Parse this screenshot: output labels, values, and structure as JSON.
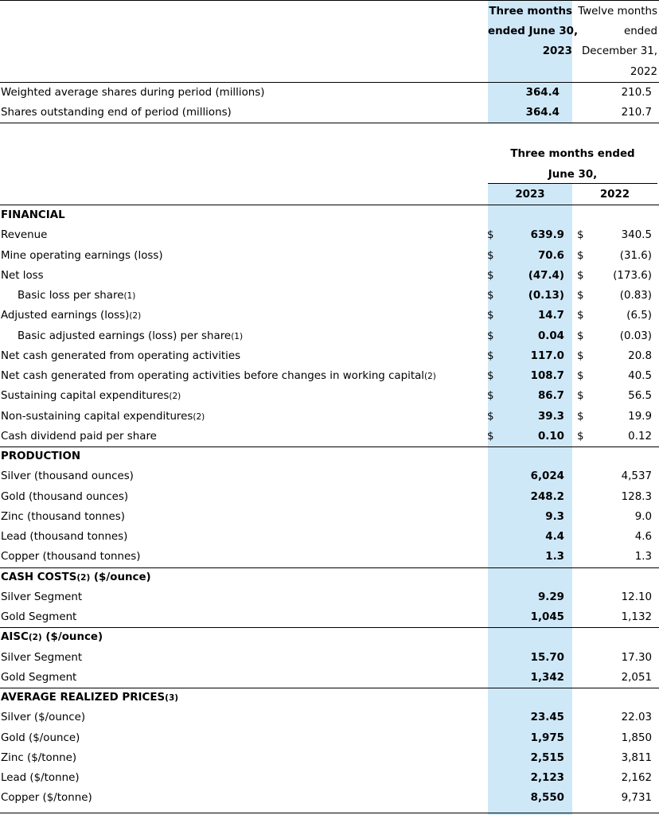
{
  "shares_table": {
    "header": {
      "col1": [
        "Three months",
        "ended June 30,",
        "2023"
      ],
      "col2": [
        "Twelve months",
        "ended",
        "December 31,",
        "2022"
      ]
    },
    "rows": [
      {
        "label": "Weighted average shares during period (millions)",
        "v2023": "364.4",
        "v2022": "210.5"
      },
      {
        "label": "Shares outstanding end of period (millions)",
        "v2023": "364.4",
        "v2022": "210.7"
      }
    ]
  },
  "main_table": {
    "header": {
      "group": [
        "Three months ended",
        "June 30,"
      ],
      "y2023": "2023",
      "y2022": "2022"
    },
    "currency_symbol": "$",
    "sections": [
      {
        "title": "FINANCIAL",
        "title_suffix": "",
        "rows": [
          {
            "label": "Revenue",
            "sup": "",
            "indent": false,
            "dollar": true,
            "v2023": "639.9",
            "v2022": "340.5"
          },
          {
            "label": "Mine operating earnings (loss)",
            "sup": "",
            "indent": false,
            "dollar": true,
            "v2023": "70.6",
            "v2022": "(31.6)"
          },
          {
            "label": "Net loss",
            "sup": "",
            "indent": false,
            "dollar": true,
            "v2023": "(47.4)",
            "v2022": "(173.6)"
          },
          {
            "label": "Basic loss per share",
            "sup": "(1)",
            "indent": true,
            "dollar": true,
            "v2023": "(0.13)",
            "v2022": "(0.83)"
          },
          {
            "label": "Adjusted earnings (loss)",
            "sup": "(2)",
            "indent": false,
            "dollar": true,
            "v2023": "14.7",
            "v2022": "(6.5)"
          },
          {
            "label": "Basic adjusted earnings (loss) per share",
            "sup": "(1)",
            "indent": true,
            "dollar": true,
            "v2023": "0.04",
            "v2022": "(0.03)"
          },
          {
            "label": "Net cash generated from operating activities",
            "sup": "",
            "indent": false,
            "dollar": true,
            "v2023": "117.0",
            "v2022": "20.8"
          },
          {
            "label": "Net cash generated from operating activities before changes in working capital",
            "sup": "(2)",
            "indent": false,
            "dollar": true,
            "v2023": "108.7",
            "v2022": "40.5"
          },
          {
            "label": "Sustaining capital expenditures",
            "sup": "(2)",
            "indent": false,
            "dollar": true,
            "v2023": "86.7",
            "v2022": "56.5"
          },
          {
            "label": "Non-sustaining capital expenditures",
            "sup": "(2)",
            "indent": false,
            "dollar": true,
            "v2023": "39.3",
            "v2022": "19.9"
          },
          {
            "label": "Cash dividend paid per share",
            "sup": "",
            "indent": false,
            "dollar": true,
            "v2023": "0.10",
            "v2022": "0.12"
          }
        ]
      },
      {
        "title": "PRODUCTION",
        "title_suffix": "",
        "rows": [
          {
            "label": "Silver (thousand ounces)",
            "sup": "",
            "indent": false,
            "dollar": false,
            "v2023": "6,024",
            "v2022": "4,537"
          },
          {
            "label": "Gold (thousand ounces)",
            "sup": "",
            "indent": false,
            "dollar": false,
            "v2023": "248.2",
            "v2022": "128.3"
          },
          {
            "label": "Zinc (thousand tonnes)",
            "sup": "",
            "indent": false,
            "dollar": false,
            "v2023": "9.3",
            "v2022": "9.0"
          },
          {
            "label": "Lead (thousand tonnes)",
            "sup": "",
            "indent": false,
            "dollar": false,
            "v2023": "4.4",
            "v2022": "4.6"
          },
          {
            "label": "Copper (thousand tonnes)",
            "sup": "",
            "indent": false,
            "dollar": false,
            "v2023": "1.3",
            "v2022": "1.3"
          }
        ]
      },
      {
        "title": "CASH COSTS",
        "title_sup": "(2)",
        "title_suffix": " ($/ounce)",
        "rows": [
          {
            "label": "Silver Segment",
            "sup": "",
            "indent": false,
            "dollar": false,
            "v2023": "9.29",
            "v2022": "12.10"
          },
          {
            "label": "Gold Segment",
            "sup": "",
            "indent": false,
            "dollar": false,
            "v2023": "1,045",
            "v2022": "1,132"
          }
        ]
      },
      {
        "title": "AISC",
        "title_sup": "(2)",
        "title_suffix": " ($/ounce)",
        "rows": [
          {
            "label": "Silver Segment",
            "sup": "",
            "indent": false,
            "dollar": false,
            "v2023": "15.70",
            "v2022": "17.30"
          },
          {
            "label": "Gold Segment",
            "sup": "",
            "indent": false,
            "dollar": false,
            "v2023": "1,342",
            "v2022": "2,051"
          }
        ]
      },
      {
        "title": "AVERAGE REALIZED PRICES",
        "title_sup": "(3)",
        "title_suffix": "",
        "rows": [
          {
            "label": "Silver ($/ounce)",
            "sup": "",
            "indent": false,
            "dollar": false,
            "v2023": "23.45",
            "v2022": "22.03"
          },
          {
            "label": "Gold ($/ounce)",
            "sup": "",
            "indent": false,
            "dollar": false,
            "v2023": "1,975",
            "v2022": "1,850"
          },
          {
            "label": "Zinc ($/tonne)",
            "sup": "",
            "indent": false,
            "dollar": false,
            "v2023": "2,515",
            "v2022": "3,811"
          },
          {
            "label": "Lead ($/tonne)",
            "sup": "",
            "indent": false,
            "dollar": false,
            "v2023": "2,123",
            "v2022": "2,162"
          },
          {
            "label": "Copper ($/tonne)",
            "sup": "",
            "indent": false,
            "dollar": false,
            "v2023": "8,550",
            "v2022": "9,731"
          }
        ]
      }
    ]
  }
}
